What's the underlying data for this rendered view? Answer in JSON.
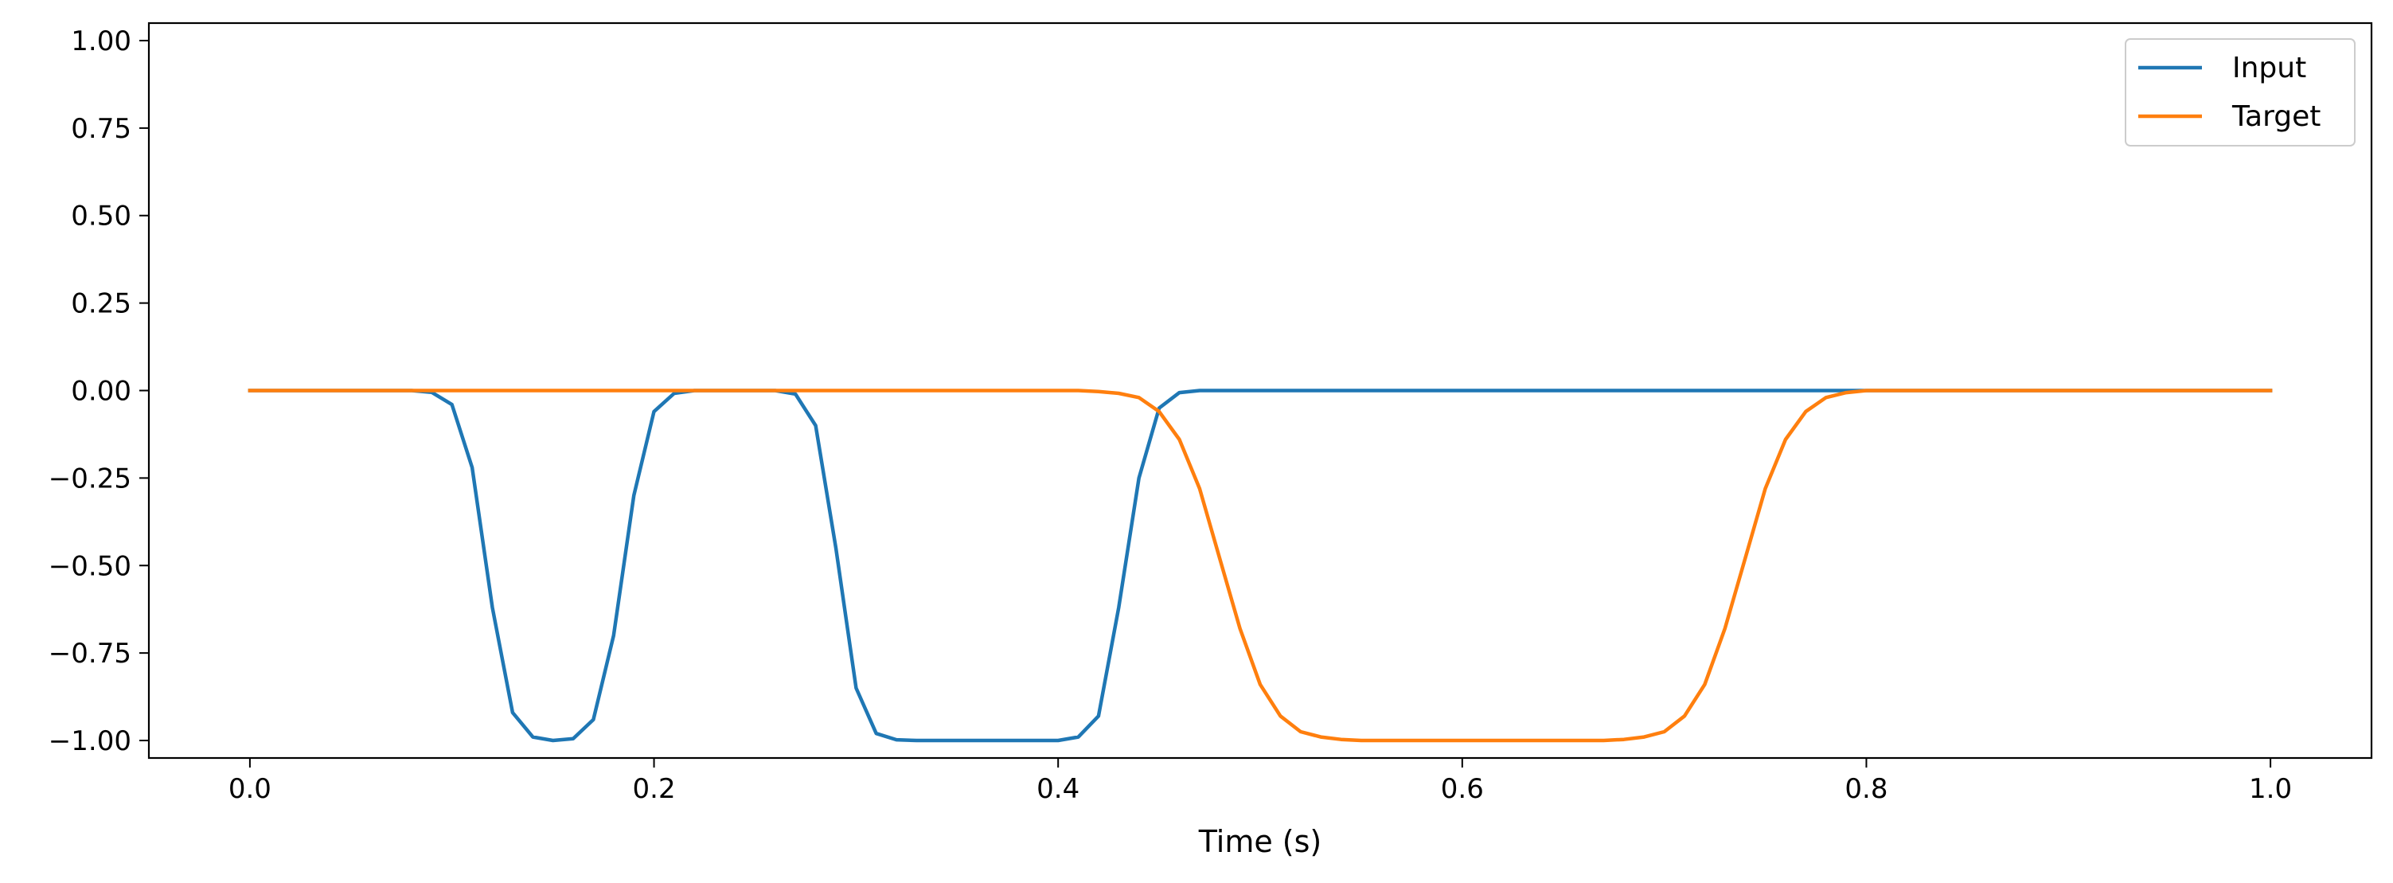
{
  "chart_data": {
    "type": "line",
    "title": "",
    "xlabel": "Time (s)",
    "ylabel": "",
    "xlim": [
      -0.05,
      1.05
    ],
    "ylim": [
      -1.05,
      1.05
    ],
    "xticks": [
      0.0,
      0.2,
      0.4,
      0.6,
      0.8,
      1.0
    ],
    "xtick_labels": [
      "0.0",
      "0.2",
      "0.4",
      "0.6",
      "0.8",
      "1.0"
    ],
    "yticks": [
      1.0,
      0.75,
      0.5,
      0.25,
      0.0,
      -0.25,
      -0.5,
      -0.75,
      -1.0
    ],
    "ytick_labels": [
      "1.00",
      "0.75",
      "0.50",
      "0.25",
      "0.00",
      "−0.25",
      "−0.50",
      "−0.75",
      "−1.00"
    ],
    "grid": false,
    "legend_position": "top-right",
    "series": [
      {
        "name": "Input",
        "color": "#1f77b4",
        "x": [
          0.0,
          0.08,
          0.09,
          0.1,
          0.11,
          0.12,
          0.13,
          0.14,
          0.15,
          0.16,
          0.17,
          0.18,
          0.19,
          0.2,
          0.21,
          0.22,
          0.23,
          0.26,
          0.27,
          0.28,
          0.29,
          0.3,
          0.31,
          0.32,
          0.33,
          0.34,
          0.4,
          0.41,
          0.42,
          0.43,
          0.44,
          0.45,
          0.46,
          0.47,
          0.48,
          0.5,
          0.8,
          1.0
        ],
        "y": [
          0.0,
          0.0,
          -0.005,
          -0.04,
          -0.22,
          -0.62,
          -0.92,
          -0.99,
          -1.0,
          -0.995,
          -0.94,
          -0.7,
          -0.3,
          -0.06,
          -0.008,
          0.0,
          0.0,
          0.0,
          -0.01,
          -0.1,
          -0.45,
          -0.85,
          -0.98,
          -0.998,
          -1.0,
          -1.0,
          -1.0,
          -0.99,
          -0.93,
          -0.62,
          -0.25,
          -0.05,
          -0.006,
          0.0,
          0.0,
          0.0,
          0.0,
          0.0
        ]
      },
      {
        "name": "Target",
        "color": "#ff7f0e",
        "x": [
          0.0,
          0.41,
          0.42,
          0.43,
          0.44,
          0.45,
          0.46,
          0.47,
          0.48,
          0.49,
          0.5,
          0.51,
          0.52,
          0.53,
          0.54,
          0.55,
          0.56,
          0.6,
          0.67,
          0.68,
          0.69,
          0.7,
          0.71,
          0.72,
          0.73,
          0.74,
          0.75,
          0.76,
          0.77,
          0.78,
          0.79,
          0.8,
          1.0
        ],
        "y": [
          0.0,
          0.0,
          -0.003,
          -0.008,
          -0.02,
          -0.06,
          -0.14,
          -0.28,
          -0.48,
          -0.68,
          -0.84,
          -0.93,
          -0.975,
          -0.99,
          -0.997,
          -1.0,
          -1.0,
          -1.0,
          -1.0,
          -0.997,
          -0.99,
          -0.975,
          -0.93,
          -0.84,
          -0.68,
          -0.48,
          -0.28,
          -0.14,
          -0.06,
          -0.02,
          -0.006,
          0.0,
          0.0
        ]
      }
    ]
  }
}
